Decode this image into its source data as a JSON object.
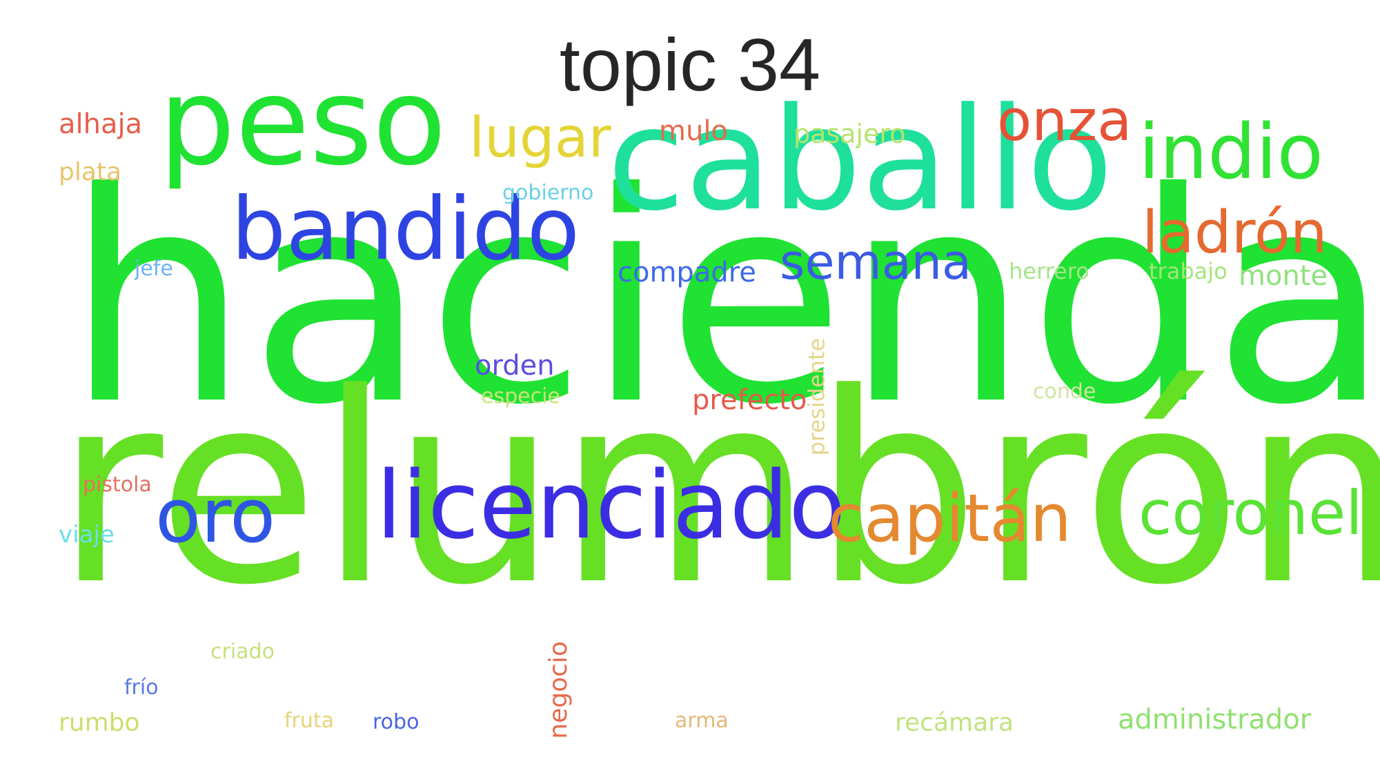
{
  "title": "topic 34",
  "words": [
    {
      "text": "hacienda",
      "color": "#1fe232",
      "rotated": false
    },
    {
      "text": "relumbrón",
      "color": "#66e024",
      "rotated": false
    },
    {
      "text": "caballo",
      "color": "#1ee09b",
      "rotated": false
    },
    {
      "text": "peso",
      "color": "#1fe232",
      "rotated": false
    },
    {
      "text": "licenciado",
      "color": "#3b2ee2",
      "rotated": false
    },
    {
      "text": "bandido",
      "color": "#2e44e2",
      "rotated": false
    },
    {
      "text": "indio",
      "color": "#30e233",
      "rotated": false
    },
    {
      "text": "oro",
      "color": "#2e56e2",
      "rotated": false
    },
    {
      "text": "capitán",
      "color": "#e48930",
      "rotated": false
    },
    {
      "text": "coronel",
      "color": "#5ae236",
      "rotated": false
    },
    {
      "text": "ladrón",
      "color": "#e46a30",
      "rotated": false
    },
    {
      "text": "onza",
      "color": "#e65237",
      "rotated": false
    },
    {
      "text": "lugar",
      "color": "#e4d436",
      "rotated": false
    },
    {
      "text": "semana",
      "color": "#3a5be4",
      "rotated": false
    },
    {
      "text": "compadre",
      "color": "#3c6ae6",
      "rotated": false
    },
    {
      "text": "mulo",
      "color": "#e66a4a",
      "rotated": false
    },
    {
      "text": "pasajero",
      "color": "#b6e46c",
      "rotated": false
    },
    {
      "text": "monte",
      "color": "#8ee27c",
      "rotated": false
    },
    {
      "text": "orden",
      "color": "#5a4ee2",
      "rotated": false
    },
    {
      "text": "prefecto",
      "color": "#e65a4a",
      "rotated": false
    },
    {
      "text": "alhaja",
      "color": "#e65e4a",
      "rotated": false
    },
    {
      "text": "plata",
      "color": "#e6c46a",
      "rotated": false
    },
    {
      "text": "administrador",
      "color": "#90e070",
      "rotated": false
    },
    {
      "text": "rumbo",
      "color": "#c8e06a",
      "rotated": false
    },
    {
      "text": "recámara",
      "color": "#c0e47c",
      "rotated": false
    },
    {
      "text": "gobierno",
      "color": "#6ad0e6",
      "rotated": false
    },
    {
      "text": "herrero",
      "color": "#a6e48a",
      "rotated": false
    },
    {
      "text": "trabajo",
      "color": "#a6e47c",
      "rotated": false
    },
    {
      "text": "especie",
      "color": "#c8e47a",
      "rotated": false
    },
    {
      "text": "conde",
      "color": "#d0e4a0",
      "rotated": false
    },
    {
      "text": "viaje",
      "color": "#6ae0e6",
      "rotated": false
    },
    {
      "text": "pistola",
      "color": "#e67060",
      "rotated": false
    },
    {
      "text": "criado",
      "color": "#c8e07c",
      "rotated": false
    },
    {
      "text": "frío",
      "color": "#5a7ae6",
      "rotated": false
    },
    {
      "text": "fruta",
      "color": "#e6d47a",
      "rotated": false
    },
    {
      "text": "robo",
      "color": "#4a64e6",
      "rotated": false
    },
    {
      "text": "arma",
      "color": "#e6b87a",
      "rotated": false
    },
    {
      "text": "jefe",
      "color": "#6ab4f0",
      "rotated": false
    },
    {
      "text": "presidente",
      "color": "#e6d48a",
      "rotated": true
    },
    {
      "text": "negocio",
      "color": "#e66a4a",
      "rotated": true
    }
  ]
}
